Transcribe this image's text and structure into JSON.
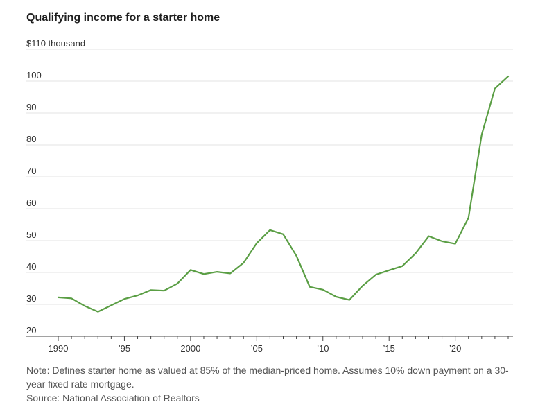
{
  "chart_data": {
    "type": "line",
    "title": "Qualifying income for a starter home",
    "unit_label": "$110 thousand",
    "y_ticks": [
      20,
      30,
      40,
      50,
      60,
      70,
      80,
      90,
      100,
      110
    ],
    "y_tick_labels": [
      "20",
      "30",
      "40",
      "50",
      "60",
      "70",
      "80",
      "90",
      "100",
      ""
    ],
    "ylim": [
      20,
      110
    ],
    "x_ticks": [
      1990,
      1995,
      2000,
      2005,
      2010,
      2015,
      2020
    ],
    "x_tick_labels": [
      "1990",
      "’95",
      "2000",
      "’05",
      "’10",
      "’15",
      "’20"
    ],
    "xlim": [
      1990,
      2024
    ],
    "grid": true,
    "line_color": "#5a9e44",
    "series": [
      {
        "x": [
          1990,
          1991,
          1992,
          1993,
          1994,
          1995,
          1996,
          1997,
          1998,
          1999,
          2000,
          2001,
          2002,
          2003,
          2004,
          2005,
          2006,
          2007,
          2008,
          2009,
          2010,
          2011,
          2012,
          2013,
          2014,
          2015,
          2016,
          2017,
          2018,
          2019,
          2020,
          2021,
          2022,
          2023,
          2024
        ],
        "y": [
          32.2,
          31.9,
          29.5,
          27.7,
          29.7,
          31.7,
          32.8,
          34.5,
          34.3,
          36.5,
          40.8,
          39.5,
          40.2,
          39.7,
          43.0,
          49.2,
          53.3,
          52.0,
          45.2,
          35.5,
          34.6,
          32.4,
          31.4,
          35.8,
          39.3,
          40.7,
          42.0,
          46.0,
          51.4,
          49.8,
          49.0,
          57.1,
          83.2,
          97.7,
          101.5
        ]
      }
    ]
  },
  "notes": {
    "note": "Note: Defines starter home as valued at 85% of the median-priced home. Assumes 10% down payment on a 30-year fixed rate mortgage.",
    "source": "Source: National Association of Realtors"
  }
}
